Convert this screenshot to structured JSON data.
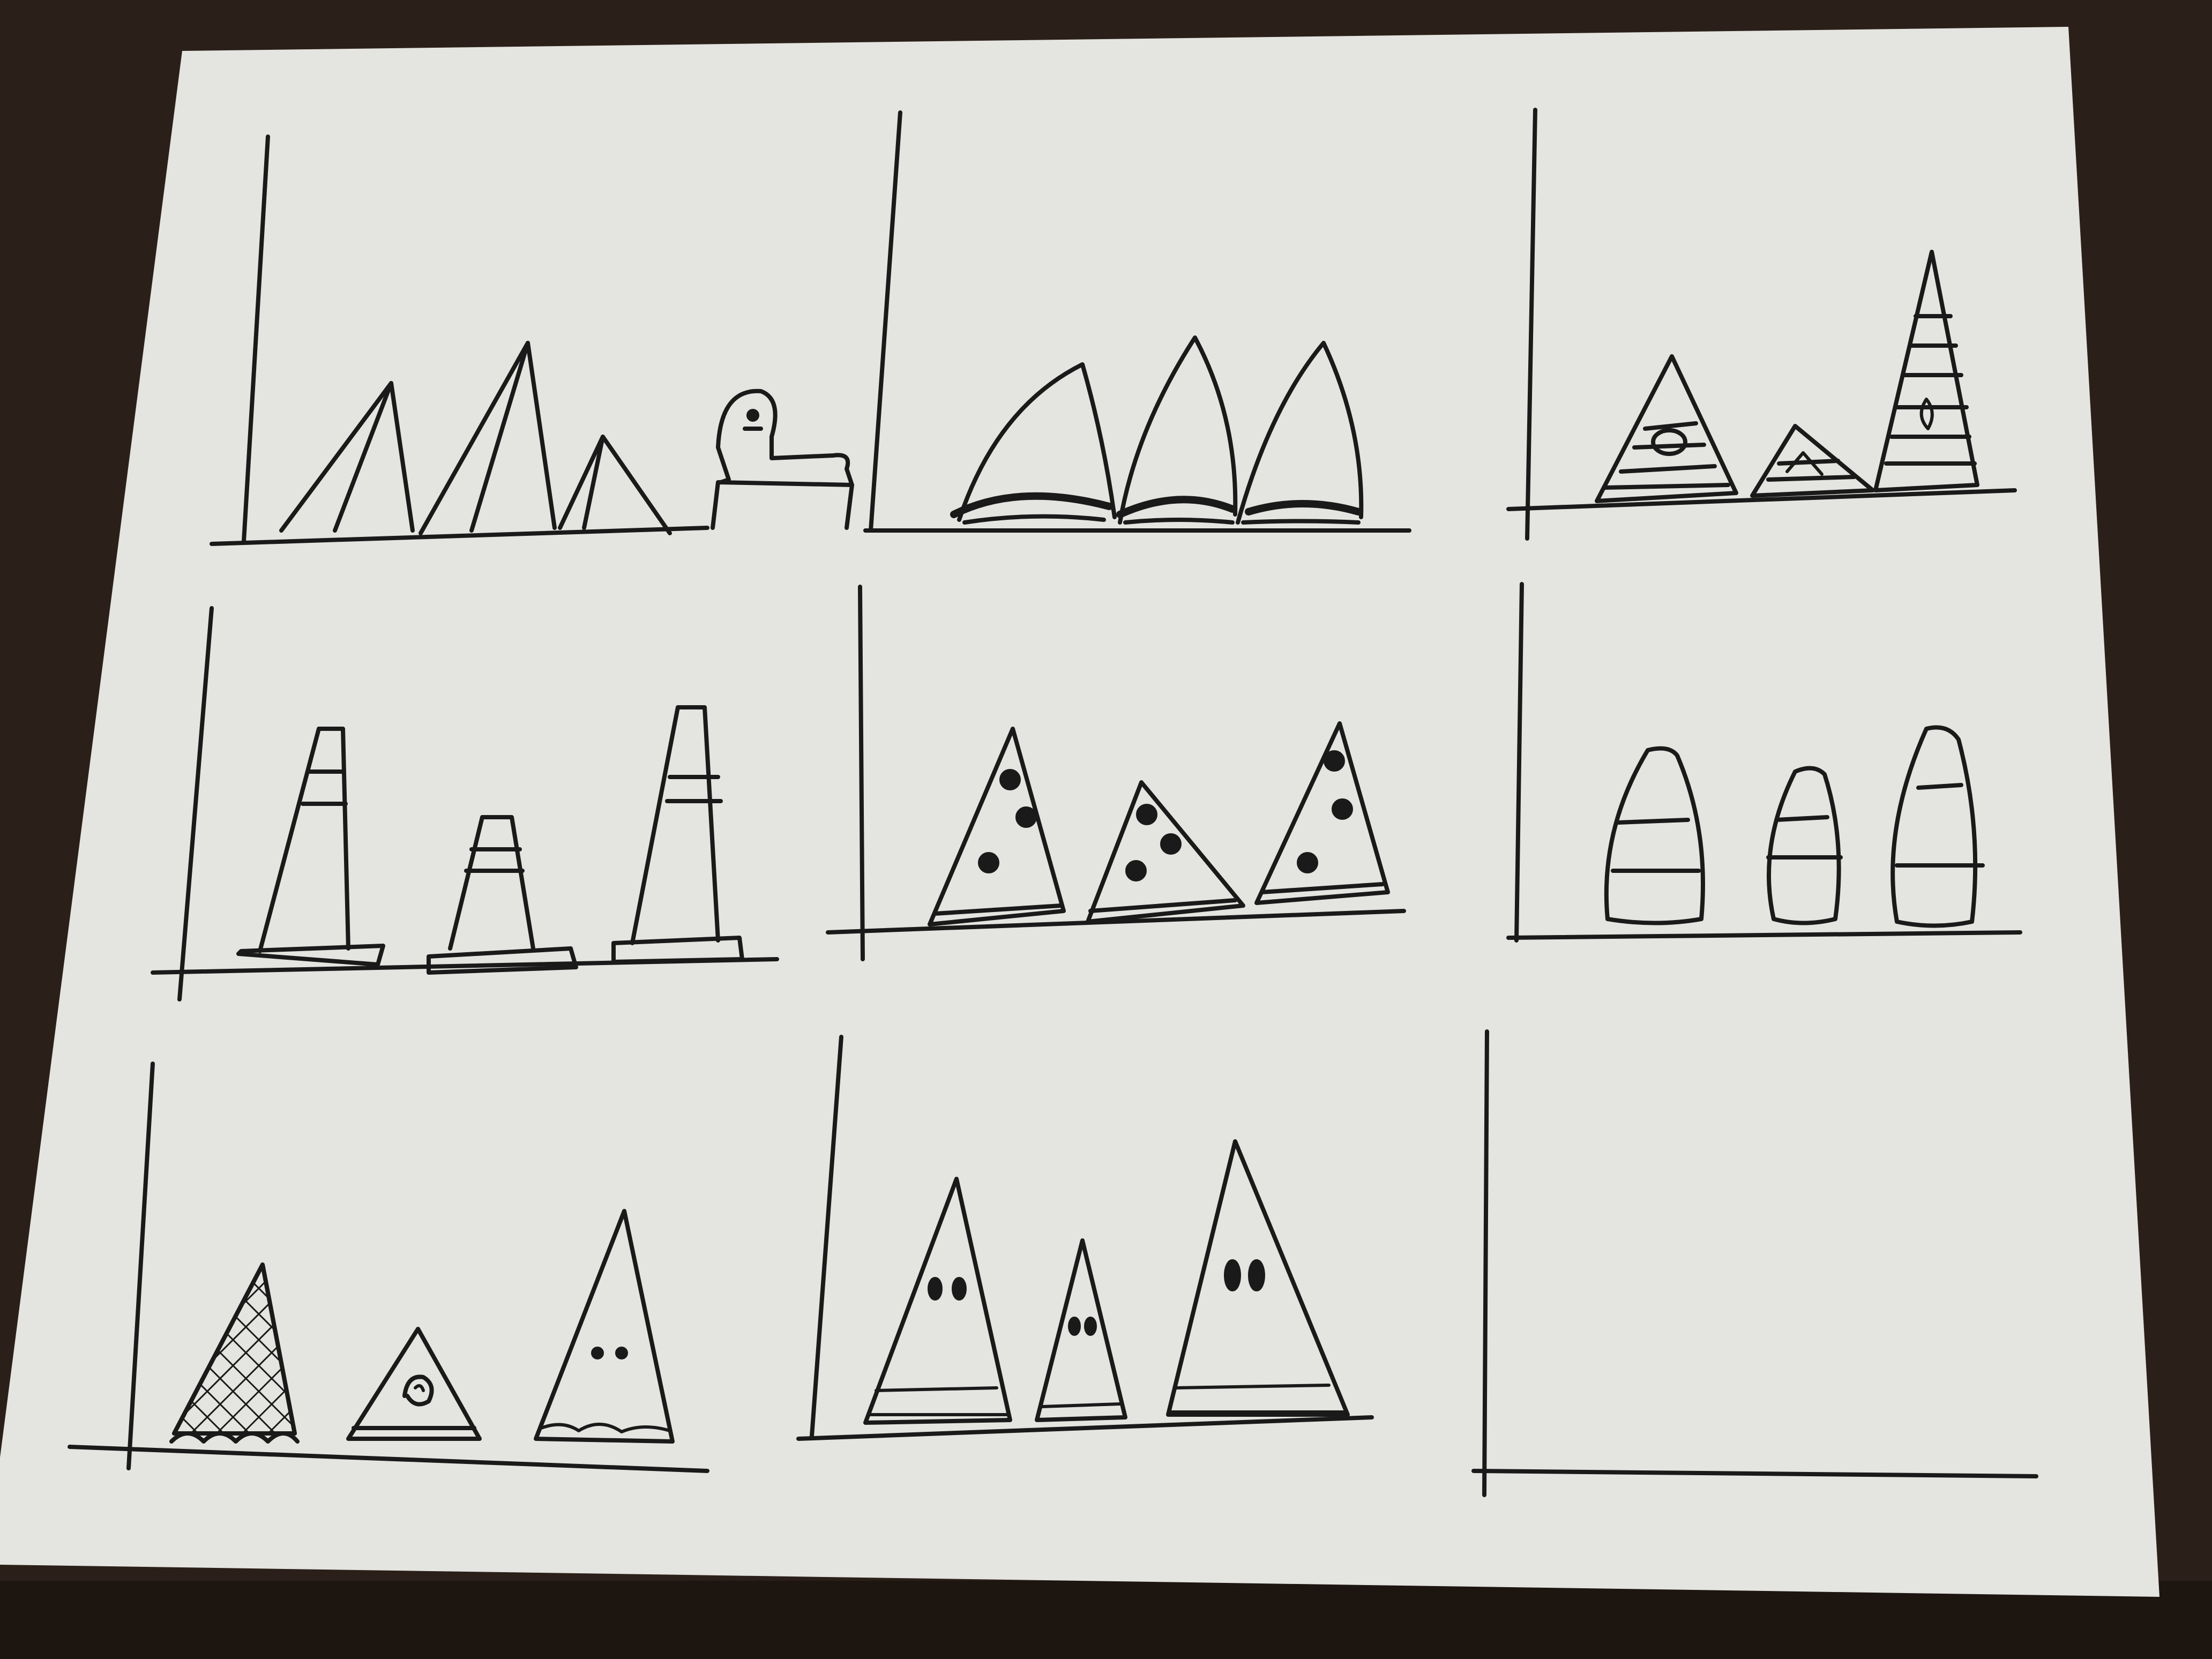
{
  "scene": {
    "table_color": "#2b2019",
    "table_edge_color": "#1c1510",
    "paper_color": "#e4e4e0",
    "paper_shadow_color": "#c9c9c4",
    "ink_color": "#1a1a1a"
  },
  "panels": [
    {
      "row": 1,
      "col": 1,
      "icons": [
        "pyramid-icon",
        "pyramid-icon",
        "pyramid-icon",
        "sphinx-icon"
      ]
    },
    {
      "row": 1,
      "col": 2,
      "icons": [
        "tent-icon",
        "tent-icon",
        "tent-icon"
      ]
    },
    {
      "row": 1,
      "col": 3,
      "icons": [
        "striped-pyramid-icon",
        "striped-pyramid-icon",
        "striped-pyramid-icon"
      ]
    },
    {
      "row": 2,
      "col": 1,
      "icons": [
        "traffic-cone-icon",
        "traffic-cone-icon",
        "traffic-cone-icon"
      ]
    },
    {
      "row": 2,
      "col": 2,
      "icons": [
        "pizza-slice-icon",
        "pizza-slice-icon",
        "pizza-slice-icon"
      ]
    },
    {
      "row": 2,
      "col": 3,
      "icons": [
        "candy-corn-icon",
        "candy-corn-icon",
        "candy-corn-icon"
      ]
    },
    {
      "row": 3,
      "col": 1,
      "icons": [
        "waffle-cone-icon",
        "pie-slice-icon",
        "ghost-triangle-icon"
      ]
    },
    {
      "row": 3,
      "col": 2,
      "icons": [
        "hooded-figure-icon",
        "hooded-figure-icon",
        "hooded-figure-icon"
      ]
    },
    {
      "row": 3,
      "col": 3,
      "icons": []
    }
  ]
}
